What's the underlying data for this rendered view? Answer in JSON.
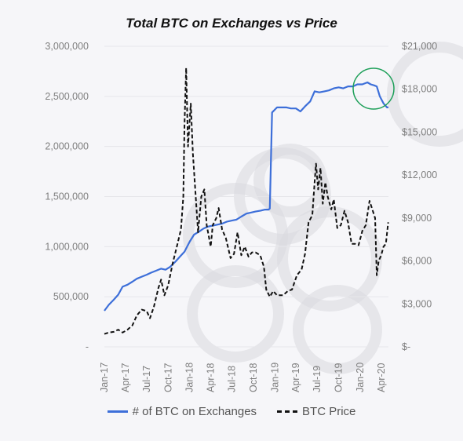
{
  "chart_data": {
    "type": "line",
    "title": "Total BTC on Exchanges vs Price",
    "x_ticks": [
      "Jan-17",
      "Apr-17",
      "Jul-17",
      "Oct-17",
      "Jan-18",
      "Apr-18",
      "Jul-18",
      "Oct-18",
      "Jan-19",
      "Apr-19",
      "Jul-19",
      "Oct-19",
      "Jan-20",
      "Apr-20"
    ],
    "y_left": {
      "ylim": [
        0,
        3000000
      ],
      "ticks": [
        "-",
        "500,000",
        "1,000,000",
        "1,500,000",
        "2,000,000",
        "2,500,000",
        "3,000,000"
      ]
    },
    "y_right": {
      "ylim": [
        0,
        21000
      ],
      "ticks": [
        "$-",
        "$3,000",
        "$6,000",
        "$9,000",
        "$12,000",
        "$15,000",
        "$18,000",
        "$21,000"
      ]
    },
    "series": [
      {
        "name": "# of BTC on Exchanges",
        "axis": "left",
        "color": "#3d6fd9",
        "style": "solid",
        "x": [
          "2017-01-01",
          "2017-01-20",
          "2017-02-10",
          "2017-03-01",
          "2017-03-20",
          "2017-04-10",
          "2017-05-01",
          "2017-05-20",
          "2017-06-10",
          "2017-07-01",
          "2017-07-20",
          "2017-08-10",
          "2017-09-01",
          "2017-09-20",
          "2017-10-10",
          "2017-11-01",
          "2017-11-20",
          "2017-12-10",
          "2018-01-01",
          "2018-01-20",
          "2018-02-10",
          "2018-03-01",
          "2018-03-20",
          "2018-04-10",
          "2018-05-01",
          "2018-05-20",
          "2018-06-10",
          "2018-07-01",
          "2018-07-20",
          "2018-08-10",
          "2018-09-01",
          "2018-09-20",
          "2018-10-10",
          "2018-11-01",
          "2018-11-20",
          "2018-12-05",
          "2018-12-10",
          "2018-12-20",
          "2019-01-10",
          "2019-02-01",
          "2019-02-20",
          "2019-03-10",
          "2019-04-01",
          "2019-04-20",
          "2019-05-10",
          "2019-06-01",
          "2019-06-20",
          "2019-07-10",
          "2019-08-01",
          "2019-08-20",
          "2019-09-10",
          "2019-10-01",
          "2019-10-20",
          "2019-11-10",
          "2019-12-01",
          "2019-12-20",
          "2020-01-10",
          "2020-02-01",
          "2020-02-15",
          "2020-03-01",
          "2020-03-12",
          "2020-03-25",
          "2020-04-10",
          "2020-04-25",
          "2020-05-01"
        ],
        "values": [
          360000,
          420000,
          470000,
          520000,
          600000,
          620000,
          650000,
          680000,
          700000,
          720000,
          740000,
          760000,
          780000,
          770000,
          800000,
          850000,
          900000,
          950000,
          1050000,
          1120000,
          1150000,
          1180000,
          1200000,
          1210000,
          1220000,
          1230000,
          1250000,
          1260000,
          1270000,
          1300000,
          1330000,
          1340000,
          1350000,
          1360000,
          1370000,
          1370000,
          1380000,
          2340000,
          2390000,
          2390000,
          2390000,
          2380000,
          2380000,
          2350000,
          2400000,
          2450000,
          2550000,
          2540000,
          2550000,
          2560000,
          2580000,
          2590000,
          2580000,
          2600000,
          2600000,
          2620000,
          2620000,
          2640000,
          2620000,
          2610000,
          2600000,
          2500000,
          2430000,
          2390000,
          2390000
        ]
      },
      {
        "name": "BTC Price",
        "axis": "right",
        "color": "#111111",
        "style": "dashed",
        "x": [
          "2017-01-01",
          "2017-01-20",
          "2017-02-10",
          "2017-03-01",
          "2017-03-20",
          "2017-04-10",
          "2017-05-01",
          "2017-05-20",
          "2017-06-10",
          "2017-07-01",
          "2017-07-15",
          "2017-08-01",
          "2017-08-20",
          "2017-09-01",
          "2017-09-15",
          "2017-10-01",
          "2017-10-20",
          "2017-11-10",
          "2017-11-25",
          "2017-12-05",
          "2017-12-10",
          "2017-12-17",
          "2017-12-25",
          "2018-01-06",
          "2018-01-15",
          "2018-01-25",
          "2018-02-06",
          "2018-02-20",
          "2018-03-05",
          "2018-03-15",
          "2018-04-01",
          "2018-04-10",
          "2018-04-25",
          "2018-05-05",
          "2018-05-20",
          "2018-06-05",
          "2018-06-25",
          "2018-07-10",
          "2018-07-25",
          "2018-08-10",
          "2018-08-25",
          "2018-09-10",
          "2018-09-25",
          "2018-10-10",
          "2018-10-30",
          "2018-11-15",
          "2018-11-25",
          "2018-12-10",
          "2018-12-25",
          "2019-01-10",
          "2019-02-05",
          "2019-02-25",
          "2019-03-15",
          "2019-04-05",
          "2019-04-25",
          "2019-05-10",
          "2019-05-25",
          "2019-06-10",
          "2019-06-20",
          "2019-06-26",
          "2019-07-05",
          "2019-07-15",
          "2019-07-25",
          "2019-08-05",
          "2019-08-15",
          "2019-08-30",
          "2019-09-10",
          "2019-09-25",
          "2019-10-10",
          "2019-10-26",
          "2019-11-10",
          "2019-11-25",
          "2019-12-10",
          "2019-12-25",
          "2020-01-10",
          "2020-01-25",
          "2020-02-10",
          "2020-02-20",
          "2020-03-05",
          "2020-03-12",
          "2020-03-20",
          "2020-03-31",
          "2020-04-10",
          "2020-04-20",
          "2020-04-30"
        ],
        "values": [
          900,
          1000,
          1050,
          1200,
          1000,
          1200,
          1500,
          2200,
          2600,
          2500,
          2000,
          2800,
          4100,
          4700,
          3600,
          4300,
          5800,
          7200,
          8200,
          10500,
          15500,
          19500,
          14000,
          17000,
          13500,
          11000,
          8000,
          10500,
          11000,
          8500,
          7000,
          8500,
          9000,
          9700,
          8200,
          7600,
          6200,
          6500,
          8000,
          6400,
          7000,
          6300,
          6600,
          6600,
          6400,
          5600,
          4000,
          3500,
          3900,
          3600,
          3600,
          3900,
          4000,
          5000,
          5400,
          6500,
          8700,
          9200,
          11500,
          12800,
          11000,
          12500,
          10000,
          11500,
          10500,
          9600,
          10300,
          8300,
          8500,
          9500,
          8700,
          7200,
          7200,
          7100,
          8100,
          8500,
          10200,
          9700,
          9000,
          5000,
          6000,
          6400,
          7000,
          7200,
          8700
        ]
      }
    ]
  }
}
